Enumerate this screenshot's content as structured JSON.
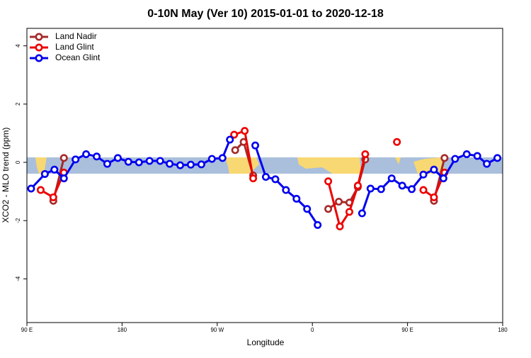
{
  "chart_data": {
    "type": "line",
    "title": "0-10N May (Ver 10)   2015-01-01 to 2020-12-18",
    "x_label": "Longitude",
    "y_label": "XCO2 - MLO trend (ppm)",
    "xlim": [
      90,
      540
    ],
    "ylim": [
      -5.5,
      4.6
    ],
    "xticks": [
      {
        "value": 90,
        "label": "90 E"
      },
      {
        "value": 180,
        "label": "180"
      },
      {
        "value": 270,
        "label": "90 W"
      },
      {
        "value": 360,
        "label": "0"
      },
      {
        "value": 450,
        "label": "90 E"
      },
      {
        "value": 540,
        "label": "180"
      }
    ],
    "yticks": [
      -4,
      -2,
      0,
      2,
      4
    ],
    "legend": "top-left",
    "series": [
      {
        "name": "Land Nadir",
        "color": "#a52a2a",
        "x": [
          115,
          125,
          null,
          287,
          295,
          304,
          null,
          375,
          385,
          395,
          403,
          410,
          null,
          475,
          485
        ],
        "values": [
          -1.32,
          0.15,
          null,
          0.42,
          0.7,
          -0.45,
          null,
          -1.6,
          -1.35,
          -1.38,
          -0.85,
          0.1,
          null,
          -1.32,
          0.15
        ]
      },
      {
        "name": "Land Glint",
        "color": "#ee0000",
        "x": [
          103,
          115,
          125,
          null,
          286,
          296,
          304,
          null,
          375,
          386,
          395,
          403,
          410,
          null,
          440,
          null,
          465,
          475,
          485
        ],
        "values": [
          -0.95,
          -1.2,
          -0.35,
          null,
          0.95,
          1.08,
          -0.55,
          null,
          -0.65,
          -2.2,
          -1.7,
          -0.8,
          0.28,
          null,
          0.7,
          null,
          -0.95,
          -1.2,
          -0.35
        ]
      },
      {
        "name": "Ocean Glint",
        "color": "#0000ee",
        "x": [
          94,
          107,
          116,
          125,
          136,
          146,
          156,
          166,
          176,
          186,
          196,
          206,
          216,
          225,
          235,
          245,
          255,
          265,
          275,
          282,
          null,
          306,
          316,
          325,
          335,
          345,
          355,
          365,
          null,
          407,
          415,
          425,
          435,
          445,
          454,
          465,
          475,
          484,
          495,
          506,
          516,
          525,
          535
        ],
        "values": [
          -0.9,
          -0.4,
          -0.25,
          -0.55,
          0.1,
          0.28,
          0.2,
          -0.05,
          0.15,
          0.02,
          0.0,
          0.05,
          0.05,
          -0.05,
          -0.1,
          -0.08,
          -0.07,
          0.12,
          0.15,
          0.78,
          null,
          0.58,
          -0.5,
          -0.58,
          -0.95,
          -1.25,
          -1.6,
          -2.15,
          null,
          -1.75,
          -0.9,
          -0.92,
          -0.55,
          -0.8,
          -0.92,
          -0.42,
          -0.25,
          -0.55,
          0.12,
          0.28,
          0.22,
          -0.05,
          0.15
        ]
      }
    ]
  }
}
